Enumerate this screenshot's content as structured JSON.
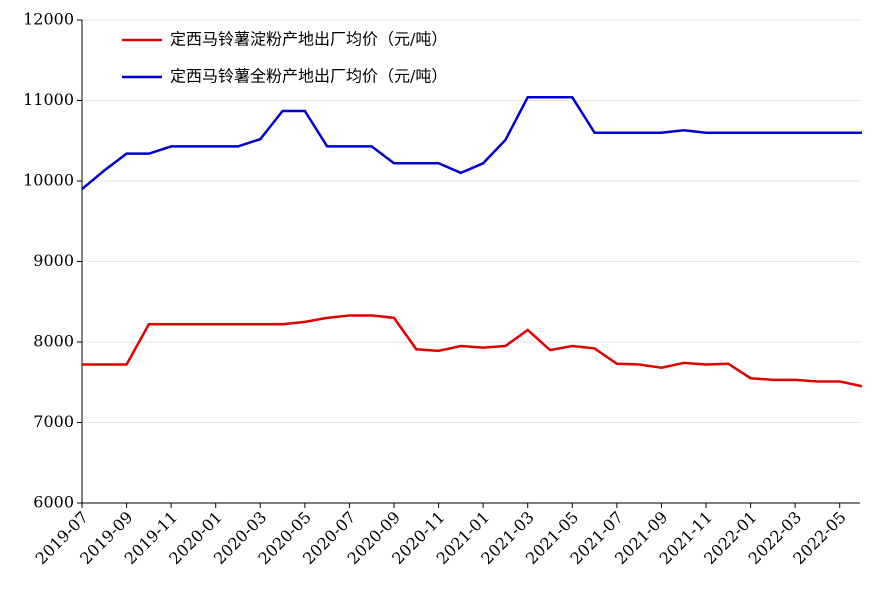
{
  "chart_data": {
    "type": "line",
    "categories": [
      "2019-07",
      null,
      "2019-09",
      null,
      "2019-11",
      null,
      "2020-01",
      null,
      "2020-03",
      null,
      "2020-05",
      null,
      "2020-07",
      null,
      "2020-09",
      null,
      "2020-11",
      null,
      "2021-01",
      null,
      "2021-03",
      null,
      "2021-05",
      null,
      "2021-07",
      null,
      "2021-09",
      null,
      "2021-11",
      null,
      "2022-01",
      null,
      "2022-03",
      null,
      "2022-05",
      null
    ],
    "series": [
      {
        "name": "定西马铃薯淀粉产地出厂均价（元/吨）",
        "color": "#e00000",
        "values": [
          7720,
          7720,
          7720,
          8220,
          8220,
          8220,
          8220,
          8220,
          8220,
          8220,
          8250,
          8300,
          8330,
          8330,
          8300,
          7910,
          7890,
          7950,
          7930,
          7950,
          8150,
          7900,
          7950,
          7920,
          7730,
          7720,
          7680,
          7740,
          7720,
          7730,
          7550,
          7530,
          7530,
          7510,
          7510,
          7450
        ]
      },
      {
        "name": "定西马铃薯全粉产地出厂均价（元/吨）",
        "color": "#0000d0",
        "values": [
          9900,
          10130,
          10340,
          10340,
          10430,
          10430,
          10430,
          10430,
          10520,
          10870,
          10870,
          10430,
          10430,
          10430,
          10220,
          10220,
          10220,
          10100,
          10220,
          10510,
          11040,
          11040,
          11040,
          10600,
          10600,
          10600,
          10600,
          10630,
          10600,
          10600,
          10600,
          10600,
          10600,
          10600,
          10600,
          10600
        ]
      }
    ],
    "ylim": [
      6000,
      12000
    ],
    "yticks": [
      6000,
      7000,
      8000,
      9000,
      10000,
      11000,
      12000
    ],
    "grid": true,
    "legend": "upper-left"
  }
}
